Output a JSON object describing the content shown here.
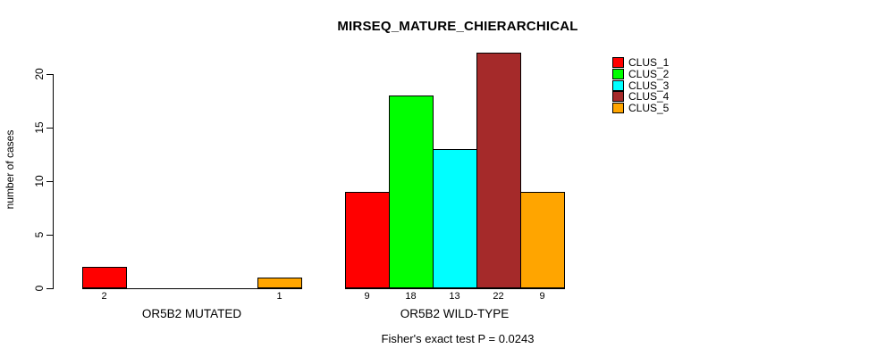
{
  "title": "MIRSEQ_MATURE_CHIERARCHICAL",
  "y_axis": {
    "label": "number of cases"
  },
  "footer": {
    "note": "Fisher's exact test P = 0.0243"
  },
  "legend": {
    "items": [
      {
        "label": "CLUS_1",
        "color": "#ff0000"
      },
      {
        "label": "CLUS_2",
        "color": "#00ff00"
      },
      {
        "label": "CLUS_3",
        "color": "#00ffff"
      },
      {
        "label": "CLUS_4",
        "color": "#a52a2a"
      },
      {
        "label": "CLUS_5",
        "color": "#ffa500"
      }
    ]
  },
  "chart_data": {
    "type": "bar",
    "title": "MIRSEQ_MATURE_CHIERARCHICAL",
    "ylabel": "number of cases",
    "xlabel": "",
    "annotation": "Fisher's exact test P = 0.0243",
    "series_names": [
      "CLUS_1",
      "CLUS_2",
      "CLUS_3",
      "CLUS_4",
      "CLUS_5"
    ],
    "colors": [
      "#ff0000",
      "#00ff00",
      "#00ffff",
      "#a52a2a",
      "#ffa500"
    ],
    "categories": [
      "OR5B2 MUTATED",
      "OR5B2 WILD-TYPE"
    ],
    "groups": [
      {
        "label": "OR5B2 MUTATED",
        "values": [
          2,
          0,
          0,
          0,
          1
        ]
      },
      {
        "label": "OR5B2 WILD-TYPE",
        "values": [
          9,
          18,
          13,
          22,
          9
        ]
      }
    ],
    "bar_value_labels_shown_for_nonzero_only": true,
    "yticks": [
      0,
      5,
      10,
      15,
      20
    ],
    "ylim": [
      0,
      22
    ],
    "grid": false,
    "legend_position": "right"
  }
}
